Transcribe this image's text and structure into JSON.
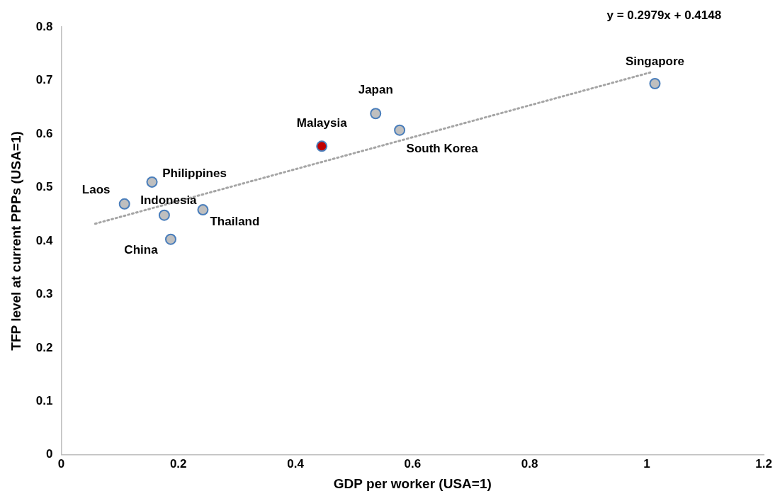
{
  "chart_data": {
    "type": "scatter",
    "xlabel": "GDP per worker (USA=1)",
    "ylabel": "TFP level at current PPPs (USA=1)",
    "xlim": [
      0,
      1.2
    ],
    "xticks": [
      0,
      0.2,
      0.4,
      0.6,
      0.8,
      1,
      1.2
    ],
    "ylim": [
      0,
      0.8
    ],
    "yticks": [
      0,
      0.1,
      0.2,
      0.3,
      0.4,
      0.5,
      0.6,
      0.7,
      0.8
    ],
    "grid": false,
    "legend": false,
    "marker": "circle",
    "series": [
      {
        "type": "scatter",
        "color": "#bfbfbf",
        "x": [
          0.108,
          0.155,
          0.176,
          0.242,
          0.187,
          0.445,
          0.537,
          0.578,
          1.014
        ],
        "values": [
          0.469,
          0.51,
          0.448,
          0.458,
          0.403,
          0.577,
          0.638,
          0.607,
          0.694
        ],
        "colors": [
          "#bfbfbf",
          "#bfbfbf",
          "#bfbfbf",
          "#bfbfbf",
          "#bfbfbf",
          "#c00000",
          "#bfbfbf",
          "#bfbfbf",
          "#bfbfbf"
        ]
      },
      {
        "type": "line",
        "color": "#a5a5a5",
        "line_style": "dotted",
        "marker": "none",
        "x": [
          0.058,
          1.01
        ],
        "values": [
          0.432,
          0.716
        ]
      }
    ],
    "annotations": [
      {
        "text": "Laos",
        "x": 0.108,
        "y": 0.469
      },
      {
        "text": "Philippines",
        "x": 0.155,
        "y": 0.51
      },
      {
        "text": "Indonesia",
        "x": 0.176,
        "y": 0.448
      },
      {
        "text": "Thailand",
        "x": 0.242,
        "y": 0.458
      },
      {
        "text": "China",
        "x": 0.187,
        "y": 0.403
      },
      {
        "text": "Malaysia",
        "x": 0.445,
        "y": 0.577
      },
      {
        "text": "Japan",
        "x": 0.537,
        "y": 0.638
      },
      {
        "text": "South Korea",
        "x": 0.578,
        "y": 0.607
      },
      {
        "text": "Singapore",
        "x": 1.014,
        "y": 0.694
      },
      "y = 0.2979x + 0.4148"
    ]
  }
}
